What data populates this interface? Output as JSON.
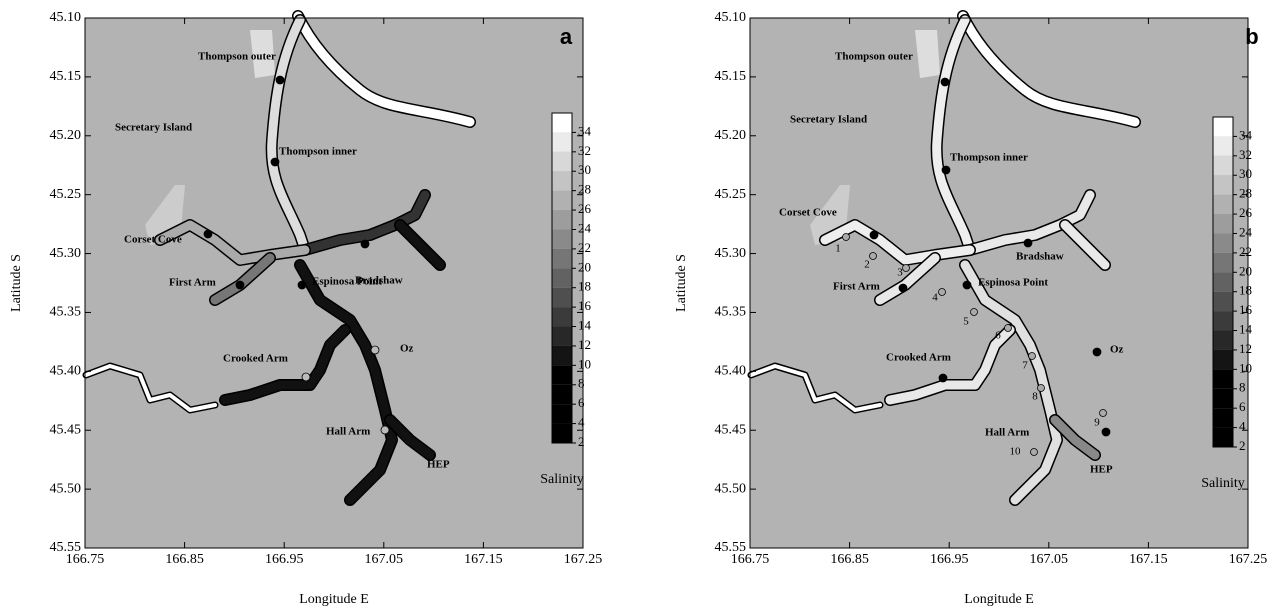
{
  "panels": [
    {
      "label": "a",
      "x_label": "Longitude E",
      "y_label": "Latitude S",
      "xlim": [
        166.75,
        167.25
      ],
      "xticks": [
        166.75,
        166.85,
        166.95,
        167.05,
        167.15,
        167.25
      ],
      "ylim": [
        45.1,
        45.55
      ],
      "yticks": [
        {
          "value": 45.1,
          "label": "45.10"
        },
        45.15,
        {
          "value": 45.2,
          "label": "45.20"
        },
        45.25,
        {
          "value": 45.3,
          "label": "45.30"
        },
        45.35,
        {
          "value": 45.4,
          "label": "45.40"
        },
        45.45,
        {
          "value": 45.5,
          "label": "45.50"
        },
        45.55
      ],
      "colorbar": {
        "title": "Salinity",
        "lim": [
          2,
          36
        ],
        "ticks": [
          2,
          4,
          6,
          8,
          10,
          12,
          14,
          16,
          18,
          20,
          22,
          24,
          26,
          28,
          30,
          32,
          34
        ]
      },
      "places": [
        "Thompson outer",
        "Secretary Island",
        "Thompson inner",
        "Corset Cove",
        "Bradshaw",
        "First Arm",
        "Espinosa Point",
        "Crooked Arm",
        "Oz",
        "Hall Arm",
        "HEP"
      ]
    },
    {
      "label": "b",
      "x_label": "Longitude E",
      "y_label": "Latitude S",
      "xlim": [
        166.75,
        167.25
      ],
      "xticks": [
        166.75,
        166.85,
        166.95,
        167.05,
        167.15,
        167.25
      ],
      "ylim": [
        45.1,
        45.55
      ],
      "yticks": [
        {
          "value": 45.1,
          "label": "45.10"
        },
        45.15,
        {
          "value": 45.2,
          "label": "45.20"
        },
        45.25,
        {
          "value": 45.3,
          "label": "45.30"
        },
        45.35,
        {
          "value": 45.4,
          "label": "45.40"
        },
        45.45,
        {
          "value": 45.5,
          "label": "45.50"
        },
        45.55
      ],
      "colorbar": {
        "title": "Salinity",
        "lim": [
          2,
          36
        ],
        "ticks": [
          2,
          4,
          6,
          8,
          10,
          12,
          14,
          16,
          18,
          20,
          22,
          24,
          26,
          28,
          30,
          32,
          34
        ]
      },
      "places": [
        "Thompson outer",
        "Secretary Island",
        "Thompson inner",
        "Corset Cove",
        "Bradshaw",
        "First Arm",
        "Espinosa Point",
        "Crooked Arm",
        "Oz",
        "Hall Arm",
        "HEP"
      ],
      "stations": [
        "1",
        "2",
        "3",
        "4",
        "5",
        "6",
        "7",
        "8",
        "9",
        "10"
      ]
    }
  ]
}
